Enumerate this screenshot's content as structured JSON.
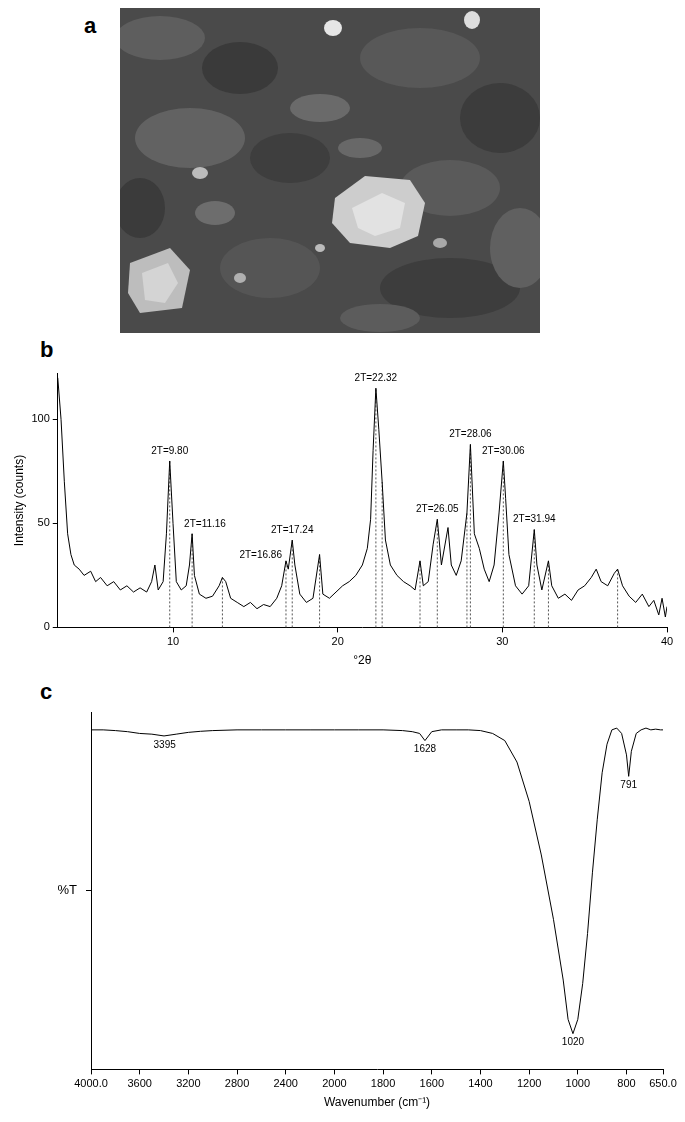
{
  "image_panel": {
    "panel": "a"
  },
  "chart_data": [
    {
      "panel": "b",
      "type": "line",
      "x_label": "°2θ",
      "y_label": "Intensity (counts)",
      "color": "#000000",
      "grid": false,
      "xlim": [
        3,
        40
      ],
      "xticks": [
        10,
        20,
        30,
        40
      ],
      "ylim": [
        0,
        122
      ],
      "yticks": [
        0,
        50,
        100
      ],
      "x": [
        3,
        3.2,
        3.4,
        3.6,
        3.8,
        4,
        4.3,
        4.6,
        5,
        5.3,
        5.6,
        6,
        6.4,
        6.8,
        7.2,
        7.6,
        8,
        8.4,
        8.7,
        8.9,
        9.1,
        9.4,
        9.6,
        9.8,
        10,
        10.2,
        10.5,
        10.8,
        11,
        11.16,
        11.3,
        11.6,
        12,
        12.4,
        12.8,
        13,
        13.2,
        13.5,
        13.9,
        14.3,
        14.7,
        15.1,
        15.5,
        15.9,
        16.3,
        16.6,
        16.86,
        17,
        17.24,
        17.4,
        17.7,
        18.1,
        18.5,
        18.9,
        19.1,
        19.5,
        19.9,
        20.3,
        20.7,
        21.1,
        21.5,
        21.8,
        22,
        22.15,
        22.32,
        22.5,
        22.7,
        22.9,
        23.2,
        23.6,
        24,
        24.4,
        24.7,
        25,
        25.2,
        25.5,
        25.8,
        26.05,
        26.3,
        26.7,
        26.9,
        27.2,
        27.5,
        27.85,
        28.06,
        28.3,
        28.6,
        28.9,
        29.2,
        29.5,
        29.8,
        30.06,
        30.2,
        30.4,
        30.8,
        31.2,
        31.6,
        31.94,
        32.1,
        32.4,
        32.8,
        33,
        33.4,
        33.8,
        34.2,
        34.6,
        35,
        35.4,
        35.7,
        36,
        36.4,
        36.8,
        37,
        37.3,
        37.7,
        38.1,
        38.5,
        38.9,
        39.2,
        39.5,
        39.7,
        39.9,
        40
      ],
      "values": [
        120,
        100,
        70,
        45,
        35,
        30,
        28,
        25,
        27,
        22,
        24,
        20,
        22,
        18,
        20,
        17,
        19,
        17,
        22,
        30,
        18,
        22,
        45,
        80,
        50,
        22,
        18,
        20,
        30,
        45,
        25,
        16,
        14,
        15,
        20,
        24,
        22,
        14,
        12,
        10,
        12,
        9,
        11,
        10,
        14,
        20,
        32,
        28,
        42,
        30,
        16,
        12,
        14,
        35,
        16,
        14,
        17,
        20,
        22,
        25,
        30,
        38,
        52,
        85,
        115,
        95,
        70,
        42,
        30,
        25,
        22,
        20,
        18,
        32,
        20,
        22,
        40,
        52,
        30,
        48,
        30,
        25,
        32,
        55,
        88,
        45,
        38,
        28,
        22,
        30,
        55,
        80,
        62,
        35,
        20,
        16,
        20,
        47,
        30,
        18,
        32,
        20,
        14,
        16,
        13,
        18,
        20,
        24,
        28,
        22,
        20,
        26,
        28,
        20,
        15,
        12,
        16,
        10,
        13,
        6,
        14,
        5,
        10
      ],
      "peak_lines": [
        9.8,
        11.16,
        13,
        16.86,
        17.24,
        18.9,
        22.32,
        22.7,
        25,
        26.05,
        27.85,
        28.06,
        30.06,
        31.94,
        32.8,
        37
      ],
      "annotations": [
        {
          "x": 9.8,
          "y": 80,
          "text": "2T=9.80"
        },
        {
          "x": 11.16,
          "y": 45,
          "text": "2T=11.16"
        },
        {
          "x": 16.86,
          "y": 32,
          "text": "2T=16.86"
        },
        {
          "x": 17.24,
          "y": 42,
          "text": "2T=17.24"
        },
        {
          "x": 22.32,
          "y": 115,
          "text": "2T=22.32"
        },
        {
          "x": 26.05,
          "y": 52,
          "text": "2T=26.05"
        },
        {
          "x": 28.06,
          "y": 88,
          "text": "2T=28.06"
        },
        {
          "x": 30.06,
          "y": 80,
          "text": "2T=30.06"
        },
        {
          "x": 31.94,
          "y": 47,
          "text": "2T=31.94"
        }
      ]
    },
    {
      "panel": "c",
      "type": "line",
      "x_label": "Wavenumber (cm⁻¹)",
      "y_label": "%T",
      "color": "#000000",
      "grid": false,
      "tick_labels": "x",
      "xlim": [
        4000,
        650
      ],
      "xticks": [
        {
          "value": 4000,
          "label": "4000.0"
        },
        3600,
        3200,
        2800,
        2400,
        2000,
        1800,
        1600,
        1400,
        1200,
        1000,
        800,
        {
          "value": 650,
          "label": "650.0"
        }
      ],
      "ylim": [
        0,
        100
      ],
      "yticks": [
        50
      ],
      "x": [
        4000,
        3900,
        3800,
        3700,
        3600,
        3500,
        3400,
        3300,
        3200,
        3100,
        3000,
        2800,
        2600,
        2400,
        2200,
        2000,
        1900,
        1800,
        1720,
        1680,
        1650,
        1628,
        1600,
        1560,
        1500,
        1450,
        1400,
        1350,
        1300,
        1250,
        1200,
        1150,
        1100,
        1060,
        1040,
        1020,
        1000,
        980,
        960,
        940,
        920,
        900,
        880,
        860,
        840,
        820,
        800,
        791,
        780,
        760,
        740,
        720,
        700,
        680,
        660,
        650
      ],
      "values": [
        95,
        95,
        94.8,
        94.5,
        94,
        93.8,
        93.3,
        93.8,
        94.3,
        94.6,
        94.8,
        95,
        95,
        95,
        95,
        95,
        95,
        95,
        94.8,
        94.5,
        94,
        92,
        94.5,
        95,
        95,
        95,
        94.8,
        94,
        92,
        86,
        75,
        60,
        42,
        25,
        14,
        10,
        14,
        24,
        38,
        55,
        70,
        83,
        91,
        95,
        95.5,
        94,
        88,
        82,
        89,
        94,
        95,
        95.5,
        95,
        95.2,
        95,
        95
      ],
      "annotations": [
        {
          "x": 3395,
          "y": 93.3,
          "text": "3395"
        },
        {
          "x": 1628,
          "y": 92,
          "text": "1628"
        },
        {
          "x": 1020,
          "y": 10,
          "text": "1020"
        },
        {
          "x": 791,
          "y": 82,
          "text": "791"
        }
      ]
    }
  ]
}
